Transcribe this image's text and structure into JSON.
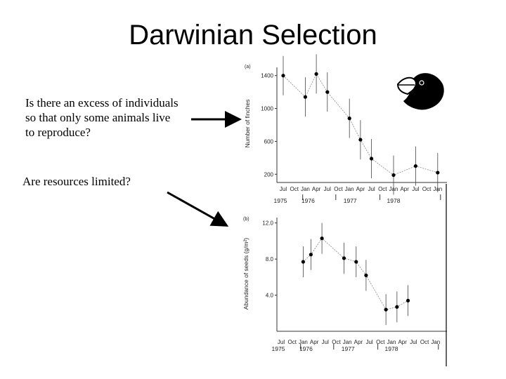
{
  "slide": {
    "title": "Darwinian Selection",
    "question1": "Is there an excess of individuals\nso that only some animals live\nto reproduce?",
    "question2": "Are resources limited?"
  },
  "chart_data": [
    {
      "type": "line",
      "panel_label": "(a)",
      "ylabel": "Number of finches",
      "yticks": [
        200,
        600,
        1000,
        1400
      ],
      "ylim": [
        100,
        1500
      ],
      "month_ticks": [
        "Jul",
        "Oct",
        "Jan",
        "Apr",
        "Jul",
        "Oct",
        "Jan",
        "Apr",
        "Jul",
        "Oct",
        "Jan",
        "Apr",
        "Jul",
        "Oct",
        "Jan"
      ],
      "year_labels": [
        "1975",
        "1976",
        "1977",
        "1978"
      ],
      "points": [
        {
          "t": 0,
          "y": 1400
        },
        {
          "t": 2,
          "y": 1140
        },
        {
          "t": 3,
          "y": 1420
        },
        {
          "t": 4,
          "y": 1200
        },
        {
          "t": 6,
          "y": 880
        },
        {
          "t": 7,
          "y": 620
        },
        {
          "t": 8,
          "y": 390
        },
        {
          "t": 10,
          "y": 190
        },
        {
          "t": 12,
          "y": 300
        },
        {
          "t": 14,
          "y": 220
        }
      ]
    },
    {
      "type": "line",
      "panel_label": "(b)",
      "ylabel": "Abundance of seeds (g/m²)",
      "yticks": [
        "4.0",
        "8.0",
        "12.0"
      ],
      "ylim": [
        0,
        12.6
      ],
      "month_ticks": [
        "Jul",
        "Oct",
        "Jan",
        "Apr",
        "Jul",
        "Oct",
        "Jan",
        "Apr",
        "Jul",
        "Oct",
        "Jan",
        "Apr",
        "Jul",
        "Oct",
        "Jan"
      ],
      "year_labels": [
        "1975",
        "1976",
        "1977",
        "1978"
      ],
      "points": [
        {
          "t": 2,
          "y": 7.7
        },
        {
          "t": 2.7,
          "y": 8.5
        },
        {
          "t": 3.7,
          "y": 10.3
        },
        {
          "t": 5.7,
          "y": 8.1
        },
        {
          "t": 6.8,
          "y": 7.7
        },
        {
          "t": 7.7,
          "y": 6.2
        },
        {
          "t": 9.5,
          "y": 2.4
        },
        {
          "t": 10.5,
          "y": 2.7
        },
        {
          "t": 11.5,
          "y": 3.4
        }
      ]
    }
  ]
}
